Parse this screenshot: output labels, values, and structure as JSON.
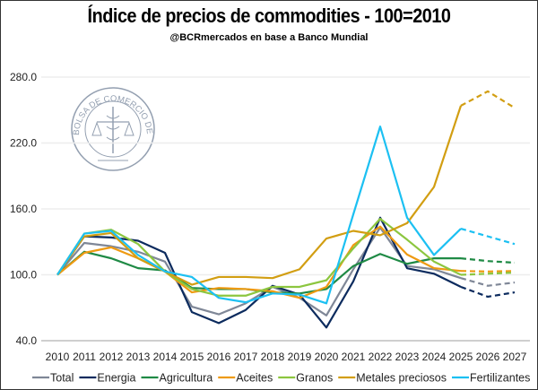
{
  "chart_data": {
    "type": "line",
    "title": "Índice de precios de commodities - 100=2010",
    "subtitle": "@BCRmercados en base a Banco Mundial",
    "logo_text": "BOLSA DE COMERCIO DE ROSARIO",
    "x": [
      "2010",
      "2011",
      "2012",
      "2013",
      "2014",
      "2015",
      "2016",
      "2017",
      "2018",
      "2019",
      "2020",
      "2021",
      "2022",
      "2023",
      "2024",
      "2025",
      "2026",
      "2027"
    ],
    "projection_from": "2025",
    "ylim": [
      40,
      280
    ],
    "yticks": [
      "40.0",
      "100.0",
      "160.0",
      "220.0",
      "280.0"
    ],
    "ytick_values": [
      40,
      100,
      160,
      220,
      280
    ],
    "grid": true,
    "legend_position": "bottom",
    "series": [
      {
        "name": "Total",
        "color": "#7F8797",
        "values": [
          100,
          129,
          126,
          121,
          112,
          71,
          64,
          74,
          89,
          79,
          63,
          105,
          143,
          108,
          105,
          97,
          90,
          93
        ]
      },
      {
        "name": "Energia",
        "color": "#0C2B5E",
        "values": [
          100,
          135,
          134,
          131,
          120,
          66,
          56,
          68,
          90,
          82,
          52,
          94,
          152,
          106,
          101,
          89,
          80,
          84
        ]
      },
      {
        "name": "Agricultura",
        "color": "#1F8A45",
        "values": [
          100,
          121,
          115,
          106,
          104,
          88,
          87,
          87,
          84,
          83,
          87,
          108,
          119,
          110,
          115,
          115,
          112.5,
          111
        ]
      },
      {
        "name": "Aceites",
        "color": "#EE9A12",
        "values": [
          100,
          120,
          125,
          115,
          103,
          84,
          88,
          87,
          85,
          79,
          89,
          127,
          144,
          118.5,
          106,
          103.5,
          103,
          103.5
        ]
      },
      {
        "name": "Granos",
        "color": "#8CC63F",
        "values": [
          100,
          137.5,
          141,
          128,
          103,
          87,
          81,
          81,
          89,
          89,
          95,
          124,
          151,
          132,
          112,
          100,
          101,
          102
        ]
      },
      {
        "name": "Metales preciosos",
        "color": "#D29E12",
        "values": [
          100,
          135,
          138,
          115,
          103,
          91,
          98,
          98,
          97,
          105,
          133,
          140,
          136,
          147,
          180,
          254,
          267,
          252
        ]
      },
      {
        "name": "Fertilizantes",
        "color": "#1CC0F2",
        "values": [
          100,
          137.5,
          140,
          118,
          103,
          98,
          79,
          75,
          83,
          82,
          74,
          155,
          235,
          152,
          118,
          142,
          135,
          128
        ]
      }
    ]
  }
}
